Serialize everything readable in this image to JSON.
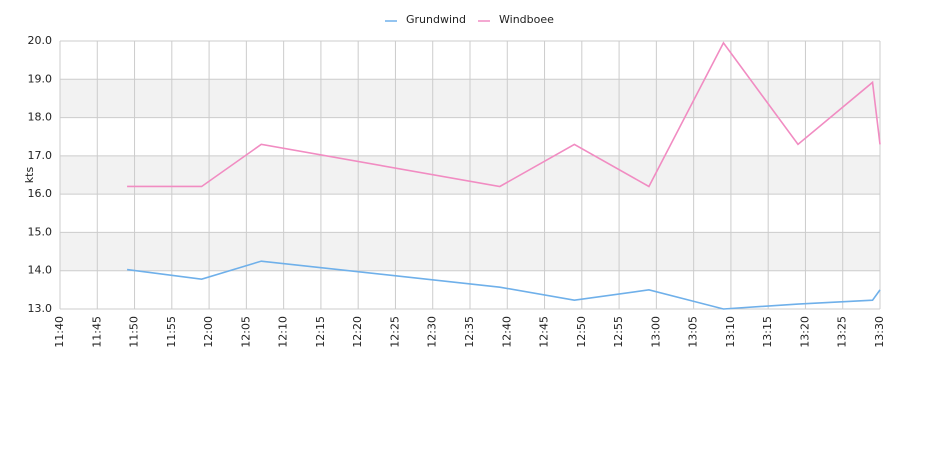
{
  "chart_data": {
    "type": "line",
    "y_label": "kts",
    "x": [
      "11:49",
      "11:59",
      "12:07",
      "12:39",
      "12:49",
      "12:59",
      "13:09",
      "13:19",
      "13:29",
      "13:30"
    ],
    "series": [
      {
        "name": "Grundwind",
        "color": "#6fb0ea",
        "values": [
          14.03,
          13.78,
          14.25,
          13.57,
          13.23,
          13.5,
          13.0,
          13.13,
          13.23,
          13.5
        ]
      },
      {
        "name": "Windboee",
        "color": "#f18cc2",
        "values": [
          16.2,
          16.2,
          17.3,
          16.2,
          17.3,
          16.2,
          19.95,
          17.3,
          18.92,
          17.3
        ]
      }
    ],
    "xlim": [
      "11:40",
      "13:30"
    ],
    "xticks": [
      "11:40",
      "11:45",
      "11:50",
      "11:55",
      "12:00",
      "12:05",
      "12:10",
      "12:15",
      "12:20",
      "12:25",
      "12:30",
      "12:35",
      "12:40",
      "12:45",
      "12:50",
      "12:55",
      "13:00",
      "13:05",
      "13:10",
      "13:15",
      "13:20",
      "13:25",
      "13:30"
    ],
    "ylim": [
      13,
      20
    ],
    "yticks": [
      {
        "value": 13,
        "label": "13.0"
      },
      {
        "value": 14,
        "label": "14.0"
      },
      {
        "value": 15,
        "label": "15.0"
      },
      {
        "value": 16,
        "label": "16.0"
      },
      {
        "value": 17,
        "label": "17.0"
      },
      {
        "value": 18,
        "label": "18.0"
      },
      {
        "value": 19,
        "label": "19.0"
      },
      {
        "value": 20,
        "label": "20.0"
      }
    ],
    "grid": true,
    "legend": "top"
  }
}
